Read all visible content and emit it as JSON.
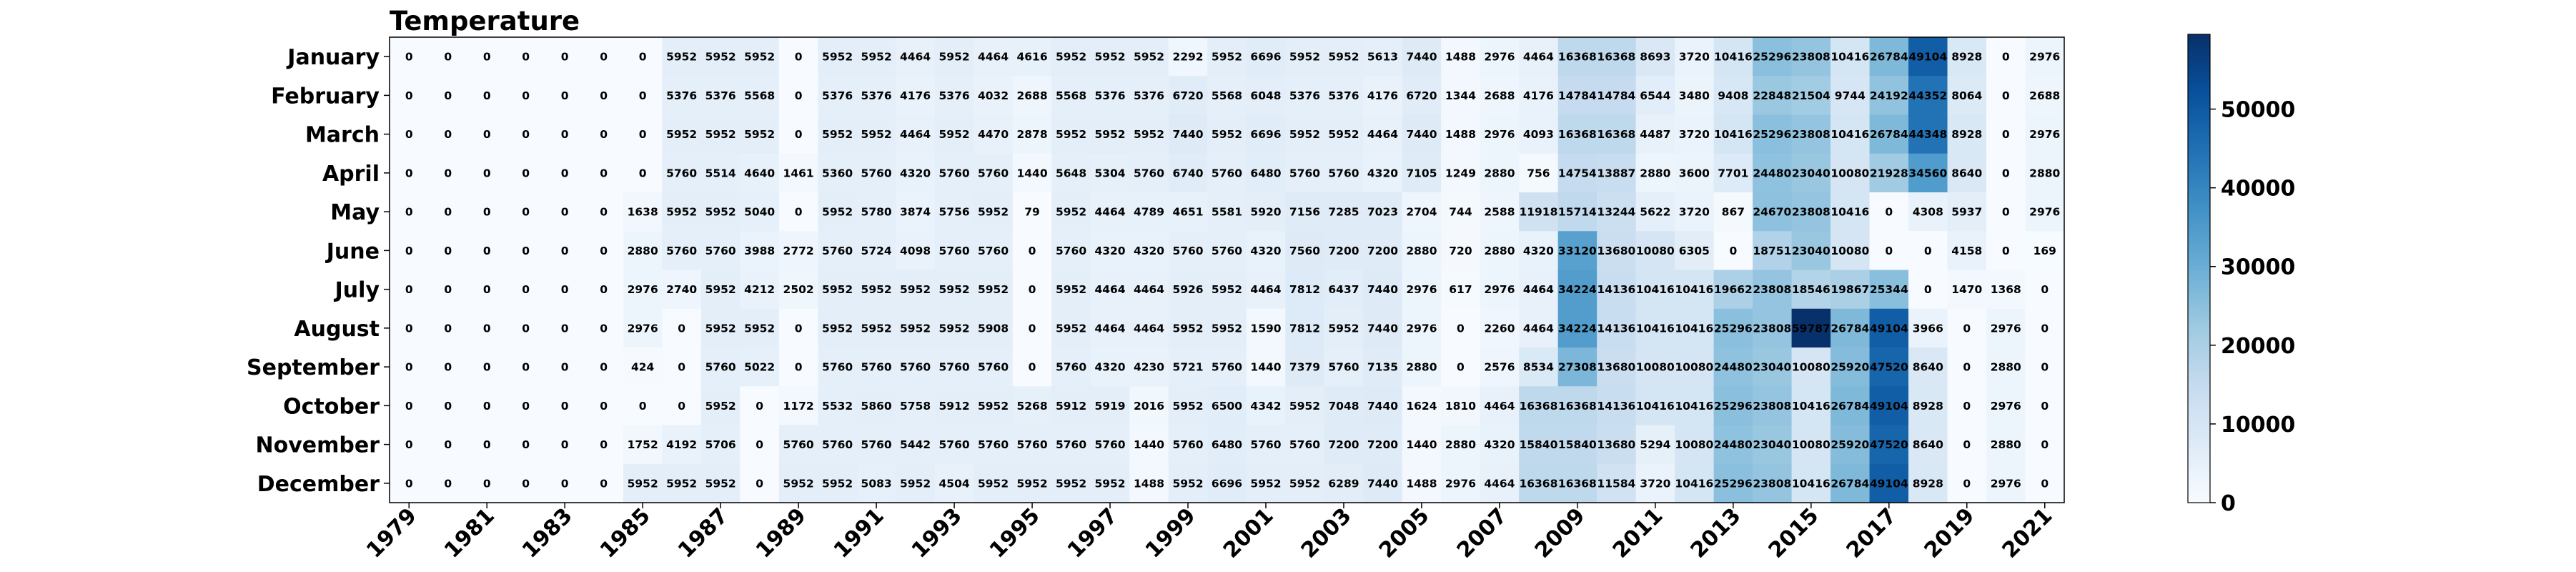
{
  "chart_data": {
    "type": "heatmap",
    "title": "Temperature",
    "colormap": "Blues",
    "vmin": 0,
    "vmax": 59500,
    "colorbar_ticks": [
      0,
      10000,
      20000,
      30000,
      40000,
      50000
    ],
    "colorbar_tick_labels": [
      "0",
      "10000",
      "20000",
      "30000",
      "40000",
      "50000"
    ],
    "years": [
      1979,
      1980,
      1981,
      1982,
      1983,
      1984,
      1985,
      1986,
      1987,
      1988,
      1989,
      1990,
      1991,
      1992,
      1993,
      1994,
      1995,
      1996,
      1997,
      1998,
      1999,
      2000,
      2001,
      2002,
      2003,
      2004,
      2005,
      2006,
      2007,
      2008,
      2009,
      2010,
      2011,
      2012,
      2013,
      2014,
      2015,
      2016,
      2017,
      2018,
      2019,
      2020,
      2021
    ],
    "x_tick_labels": [
      "1979",
      "1981",
      "1983",
      "1985",
      "1987",
      "1989",
      "1991",
      "1993",
      "1995",
      "1997",
      "1999",
      "2001",
      "2003",
      "2005",
      "2007",
      "2009",
      "2011",
      "2013",
      "2015",
      "2017",
      "2019",
      "2021"
    ],
    "months": [
      "January",
      "February",
      "March",
      "April",
      "May",
      "June",
      "July",
      "August",
      "September",
      "October",
      "November",
      "December"
    ],
    "values": [
      [
        0,
        0,
        0,
        0,
        0,
        0,
        0,
        5952,
        5952,
        5952,
        0,
        5952,
        5952,
        4464,
        5952,
        4464,
        4616,
        5952,
        5952,
        5952,
        2292,
        5952,
        6696,
        5952,
        5952,
        5613,
        7440,
        1488,
        2976,
        4464,
        16368,
        16368,
        8693,
        3720,
        10416,
        25296,
        23808,
        10416,
        26784,
        49104,
        8928,
        0,
        2976
      ],
      [
        0,
        0,
        0,
        0,
        0,
        0,
        0,
        5376,
        5376,
        5568,
        0,
        5376,
        5376,
        4176,
        5376,
        4032,
        2688,
        5568,
        5376,
        5376,
        6720,
        5568,
        6048,
        5376,
        5376,
        4176,
        6720,
        1344,
        2688,
        4176,
        14784,
        14784,
        6544,
        3480,
        9408,
        22848,
        21504,
        9744,
        24192,
        44352,
        8064,
        0,
        2688
      ],
      [
        0,
        0,
        0,
        0,
        0,
        0,
        0,
        5952,
        5952,
        5952,
        0,
        5952,
        5952,
        4464,
        5952,
        4470,
        2878,
        5952,
        5952,
        5952,
        7440,
        5952,
        6696,
        5952,
        5952,
        4464,
        7440,
        1488,
        2976,
        4093,
        16368,
        16368,
        4487,
        3720,
        10416,
        25296,
        23808,
        10416,
        26784,
        44348,
        8928,
        0,
        2976
      ],
      [
        0,
        0,
        0,
        0,
        0,
        0,
        0,
        5760,
        5514,
        4640,
        1461,
        5360,
        5760,
        4320,
        5760,
        5760,
        1440,
        5648,
        5304,
        5760,
        6740,
        5760,
        6480,
        5760,
        5760,
        4320,
        7105,
        1249,
        2880,
        756,
        14754,
        13887,
        2880,
        3600,
        7701,
        24480,
        23040,
        10080,
        21928,
        34560,
        8640,
        0,
        2880
      ],
      [
        0,
        0,
        0,
        0,
        0,
        0,
        1638,
        5952,
        5952,
        5040,
        0,
        5952,
        5780,
        3874,
        5756,
        5952,
        79,
        5952,
        4464,
        4789,
        4651,
        5581,
        5920,
        7156,
        7285,
        7023,
        2704,
        744,
        2588,
        11918,
        15714,
        13244,
        5622,
        3720,
        867,
        24670,
        23808,
        10416,
        0,
        4308,
        5937,
        0,
        2976
      ],
      [
        0,
        0,
        0,
        0,
        0,
        0,
        2880,
        5760,
        5760,
        3988,
        2772,
        5760,
        5724,
        4098,
        5760,
        5760,
        0,
        5760,
        4320,
        4320,
        5760,
        5760,
        4320,
        7560,
        7200,
        7200,
        2880,
        720,
        2880,
        4320,
        33120,
        13680,
        10080,
        6305,
        0,
        18751,
        23040,
        10080,
        0,
        0,
        4158,
        0,
        169
      ],
      [
        0,
        0,
        0,
        0,
        0,
        0,
        2976,
        2740,
        5952,
        4212,
        2502,
        5952,
        5952,
        5952,
        5952,
        5952,
        0,
        5952,
        4464,
        4464,
        5926,
        5952,
        4464,
        7812,
        6437,
        7440,
        2976,
        617,
        2976,
        4464,
        34224,
        14136,
        10416,
        10416,
        19662,
        23808,
        18546,
        19867,
        25344,
        0,
        1470,
        1368,
        0
      ],
      [
        0,
        0,
        0,
        0,
        0,
        0,
        2976,
        0,
        5952,
        5952,
        0,
        5952,
        5952,
        5952,
        5952,
        5908,
        0,
        5952,
        4464,
        4464,
        5952,
        5952,
        1590,
        7812,
        5952,
        7440,
        2976,
        0,
        2260,
        4464,
        34224,
        14136,
        10416,
        10416,
        25296,
        23808,
        59787,
        26784,
        49104,
        3966,
        0,
        2976,
        0
      ],
      [
        0,
        0,
        0,
        0,
        0,
        0,
        424,
        0,
        5760,
        5022,
        0,
        5760,
        5760,
        5760,
        5760,
        5760,
        0,
        5760,
        4320,
        4230,
        5721,
        5760,
        1440,
        7379,
        5760,
        7135,
        2880,
        0,
        2576,
        8534,
        27308,
        13680,
        10080,
        10080,
        24480,
        23040,
        10080,
        25920,
        47520,
        8640,
        0,
        2880,
        0
      ],
      [
        0,
        0,
        0,
        0,
        0,
        0,
        0,
        0,
        5952,
        0,
        1172,
        5532,
        5860,
        5758,
        5912,
        5952,
        5268,
        5912,
        5919,
        2016,
        5952,
        6500,
        4342,
        5952,
        7048,
        7440,
        1624,
        1810,
        4464,
        16368,
        16368,
        14136,
        10416,
        10416,
        25296,
        23808,
        10416,
        26784,
        49104,
        8928,
        0,
        2976,
        0
      ],
      [
        0,
        0,
        0,
        0,
        0,
        0,
        1752,
        4192,
        5706,
        0,
        5760,
        5760,
        5760,
        5442,
        5760,
        5760,
        5760,
        5760,
        5760,
        1440,
        5760,
        6480,
        5760,
        5760,
        7200,
        7200,
        1440,
        2880,
        4320,
        15840,
        15840,
        13680,
        5294,
        10080,
        24480,
        23040,
        10080,
        25920,
        47520,
        8640,
        0,
        2880,
        0
      ],
      [
        0,
        0,
        0,
        0,
        0,
        0,
        5952,
        5952,
        5952,
        0,
        5952,
        5952,
        5083,
        5952,
        4504,
        5952,
        5952,
        5952,
        5952,
        1488,
        5952,
        6696,
        5952,
        5952,
        6289,
        7440,
        1488,
        2976,
        4464,
        16368,
        16368,
        11584,
        3720,
        10416,
        25296,
        23808,
        10416,
        26784,
        49104,
        8928,
        0,
        2976,
        0
      ]
    ]
  }
}
